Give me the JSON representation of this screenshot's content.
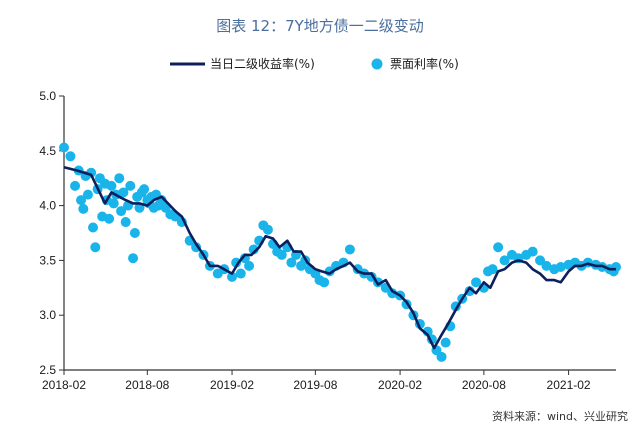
{
  "chart_data": {
    "type": "line",
    "title": "图表 12：7Y地方债一二级变动",
    "source": "资料来源：wind、兴业研究",
    "x_range": [
      "2018-02-01",
      "2021-05-15"
    ],
    "ylim": [
      2.5,
      5.0
    ],
    "y_ticks": [
      "2.5",
      "3.0",
      "3.5",
      "4.0",
      "4.5",
      "5.0"
    ],
    "x_ticks": [
      {
        "date": "2018-02-01",
        "label": "2018-02"
      },
      {
        "date": "2018-08-01",
        "label": "2018-08"
      },
      {
        "date": "2019-02-01",
        "label": "2019-02"
      },
      {
        "date": "2019-08-01",
        "label": "2019-08"
      },
      {
        "date": "2020-02-01",
        "label": "2020-02"
      },
      {
        "date": "2020-08-01",
        "label": "2020-08"
      },
      {
        "date": "2021-02-01",
        "label": "2021-02"
      }
    ],
    "legend": {
      "position": "top"
    },
    "colors": {
      "line": "#0d1f5c",
      "scatter": "#19b4ea",
      "axis": "#333333",
      "title": "#4a6f9e"
    },
    "series": [
      {
        "name": "当日二级收益率(%)",
        "kind": "line",
        "x": [
          "2018-02-01",
          "2018-03-01",
          "2018-04-01",
          "2018-05-01",
          "2018-05-15",
          "2018-06-01",
          "2018-06-15",
          "2018-07-01",
          "2018-07-15",
          "2018-08-01",
          "2018-08-15",
          "2018-09-01",
          "2018-09-15",
          "2018-10-01",
          "2018-10-15",
          "2018-11-01",
          "2018-11-15",
          "2018-12-01",
          "2018-12-15",
          "2019-01-01",
          "2019-01-15",
          "2019-02-01",
          "2019-02-15",
          "2019-03-01",
          "2019-03-15",
          "2019-04-01",
          "2019-04-15",
          "2019-05-01",
          "2019-05-15",
          "2019-06-01",
          "2019-06-15",
          "2019-07-01",
          "2019-07-15",
          "2019-08-01",
          "2019-08-15",
          "2019-09-01",
          "2019-09-15",
          "2019-10-01",
          "2019-10-15",
          "2019-11-01",
          "2019-11-15",
          "2019-12-01",
          "2019-12-15",
          "2020-01-01",
          "2020-01-15",
          "2020-02-01",
          "2020-02-15",
          "2020-03-01",
          "2020-03-15",
          "2020-04-01",
          "2020-04-15",
          "2020-05-01",
          "2020-05-15",
          "2020-06-01",
          "2020-06-15",
          "2020-07-01",
          "2020-07-15",
          "2020-08-01",
          "2020-08-15",
          "2020-09-01",
          "2020-09-15",
          "2020-10-01",
          "2020-10-15",
          "2020-11-01",
          "2020-11-15",
          "2020-12-01",
          "2020-12-15",
          "2021-01-01",
          "2021-01-15",
          "2021-02-01",
          "2021-02-15",
          "2021-03-01",
          "2021-03-15",
          "2021-04-01",
          "2021-04-15",
          "2021-05-01",
          "2021-05-15"
        ],
        "values": [
          4.35,
          4.32,
          4.28,
          4.02,
          4.12,
          4.08,
          4.05,
          4.02,
          4.02,
          4.0,
          4.05,
          4.08,
          4.02,
          3.95,
          3.9,
          3.75,
          3.65,
          3.55,
          3.45,
          3.45,
          3.42,
          3.38,
          3.48,
          3.55,
          3.55,
          3.62,
          3.72,
          3.7,
          3.62,
          3.68,
          3.58,
          3.58,
          3.48,
          3.42,
          3.4,
          3.38,
          3.42,
          3.45,
          3.48,
          3.4,
          3.38,
          3.38,
          3.28,
          3.32,
          3.22,
          3.18,
          3.12,
          3.02,
          2.88,
          2.82,
          2.7,
          2.82,
          2.92,
          3.05,
          3.15,
          3.25,
          3.2,
          3.3,
          3.25,
          3.4,
          3.42,
          3.48,
          3.5,
          3.48,
          3.42,
          3.38,
          3.32,
          3.32,
          3.3,
          3.4,
          3.45,
          3.45,
          3.47,
          3.45,
          3.45,
          3.42,
          3.42
        ]
      },
      {
        "name": "票面利率(%)",
        "kind": "scatter",
        "x": [
          "2018-02-01",
          "2018-02-15",
          "2018-02-25",
          "2018-03-05",
          "2018-03-10",
          "2018-03-15",
          "2018-03-20",
          "2018-03-25",
          "2018-04-01",
          "2018-04-05",
          "2018-04-10",
          "2018-04-15",
          "2018-04-20",
          "2018-04-25",
          "2018-05-01",
          "2018-05-05",
          "2018-05-10",
          "2018-05-15",
          "2018-05-20",
          "2018-05-25",
          "2018-06-01",
          "2018-06-05",
          "2018-06-10",
          "2018-06-15",
          "2018-06-20",
          "2018-06-25",
          "2018-07-01",
          "2018-07-05",
          "2018-07-10",
          "2018-07-15",
          "2018-07-20",
          "2018-07-25",
          "2018-08-01",
          "2018-08-05",
          "2018-08-10",
          "2018-08-15",
          "2018-08-20",
          "2018-08-25",
          "2018-09-01",
          "2018-09-10",
          "2018-09-20",
          "2018-10-01",
          "2018-10-15",
          "2018-11-01",
          "2018-11-15",
          "2018-12-01",
          "2018-12-15",
          "2019-01-01",
          "2019-01-15",
          "2019-02-01",
          "2019-02-10",
          "2019-02-20",
          "2019-03-01",
          "2019-03-10",
          "2019-03-20",
          "2019-04-01",
          "2019-04-10",
          "2019-04-20",
          "2019-05-01",
          "2019-05-10",
          "2019-05-20",
          "2019-06-01",
          "2019-06-10",
          "2019-06-20",
          "2019-07-01",
          "2019-07-10",
          "2019-07-20",
          "2019-08-01",
          "2019-08-10",
          "2019-08-20",
          "2019-09-01",
          "2019-09-15",
          "2019-10-01",
          "2019-10-15",
          "2019-11-01",
          "2019-11-15",
          "2019-12-01",
          "2019-12-15",
          "2020-01-01",
          "2020-01-15",
          "2020-02-01",
          "2020-02-15",
          "2020-03-01",
          "2020-03-15",
          "2020-04-01",
          "2020-04-10",
          "2020-04-20",
          "2020-05-01",
          "2020-05-10",
          "2020-05-20",
          "2020-06-01",
          "2020-06-15",
          "2020-07-01",
          "2020-07-15",
          "2020-08-01",
          "2020-08-10",
          "2020-08-20",
          "2020-09-01",
          "2020-09-15",
          "2020-10-01",
          "2020-10-15",
          "2020-11-01",
          "2020-11-15",
          "2020-12-01",
          "2020-12-15",
          "2021-01-01",
          "2021-01-15",
          "2021-02-01",
          "2021-02-15",
          "2021-03-01",
          "2021-03-15",
          "2021-04-01",
          "2021-04-15",
          "2021-05-01",
          "2021-05-10",
          "2021-05-15"
        ],
        "values": [
          4.53,
          4.45,
          4.18,
          4.32,
          4.05,
          3.97,
          4.27,
          4.1,
          4.3,
          3.8,
          3.62,
          4.15,
          4.25,
          3.9,
          4.2,
          4.05,
          3.88,
          4.18,
          4.02,
          4.1,
          4.25,
          3.95,
          4.12,
          3.85,
          4.0,
          4.18,
          3.52,
          3.75,
          4.08,
          3.98,
          4.12,
          4.15,
          4.05,
          4.02,
          4.08,
          3.98,
          4.1,
          4.0,
          4.05,
          3.98,
          3.92,
          3.9,
          3.85,
          3.68,
          3.62,
          3.55,
          3.45,
          3.38,
          3.42,
          3.35,
          3.48,
          3.38,
          3.52,
          3.45,
          3.6,
          3.68,
          3.82,
          3.78,
          3.65,
          3.58,
          3.55,
          3.62,
          3.48,
          3.55,
          3.45,
          3.5,
          3.42,
          3.38,
          3.32,
          3.3,
          3.4,
          3.45,
          3.48,
          3.6,
          3.42,
          3.38,
          3.35,
          3.3,
          3.25,
          3.2,
          3.18,
          3.1,
          3.0,
          2.92,
          2.85,
          2.78,
          2.68,
          2.62,
          2.75,
          2.9,
          3.08,
          3.15,
          3.22,
          3.3,
          3.25,
          3.4,
          3.42,
          3.62,
          3.5,
          3.55,
          3.52,
          3.55,
          3.58,
          3.5,
          3.45,
          3.42,
          3.44,
          3.46,
          3.48,
          3.45,
          3.48,
          3.46,
          3.44,
          3.42,
          3.4,
          3.44
        ]
      }
    ]
  }
}
